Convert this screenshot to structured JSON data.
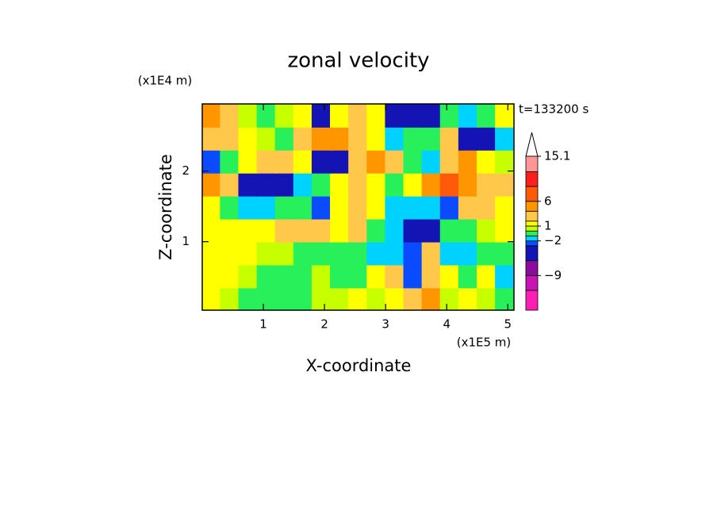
{
  "chart_data": {
    "type": "contourf",
    "title": "zonal velocity",
    "x_label": "X-coordinate",
    "y_label": "Z-coordinate",
    "x_unit": "(x1E5 m)",
    "y_unit": "(x1E4 m)",
    "annotation": "t=133200 s",
    "xlim": [
      0,
      5.1
    ],
    "ylim": [
      0.03,
      2.95
    ],
    "xticks": [
      1,
      2,
      3,
      4,
      5
    ],
    "yticks": [
      1,
      2
    ],
    "x": [
      0.15,
      0.45,
      0.75,
      1.05,
      1.35,
      1.65,
      1.95,
      2.25,
      2.55,
      2.85,
      3.15,
      3.45,
      3.75,
      4.05,
      4.35,
      4.65,
      4.95
    ],
    "y": [
      0.19,
      0.51,
      0.84,
      1.16,
      1.49,
      1.81,
      2.14,
      2.46,
      2.79
    ],
    "z": [
      [
        1.5,
        0.5,
        -0.5,
        -0.5,
        -0.5,
        -0.5,
        0.5,
        0.5,
        1.5,
        0.5,
        1.5,
        3,
        5,
        0.5,
        1.5,
        0.5,
        -0.5
      ],
      [
        1.5,
        1.5,
        0.5,
        -0.5,
        -0.5,
        -0.5,
        0.5,
        -0.5,
        -0.5,
        1.5,
        3,
        -2.5,
        3,
        1.5,
        -0.5,
        1.5,
        -1.5
      ],
      [
        1.5,
        1.5,
        1.5,
        0.5,
        0.5,
        -0.5,
        -0.5,
        -0.5,
        -0.5,
        -1.5,
        -1.5,
        -2.5,
        3,
        -1.5,
        -1.5,
        -0.5,
        -0.5
      ],
      [
        1.5,
        1.5,
        1.5,
        1.5,
        3,
        3,
        3,
        1.5,
        3,
        -0.5,
        -1.5,
        -5,
        -5,
        -0.5,
        -0.5,
        0.5,
        1.5
      ],
      [
        1.5,
        -0.5,
        -1.5,
        -1.5,
        -0.5,
        -0.5,
        -2.5,
        1.5,
        3,
        1.5,
        -1.5,
        -1.5,
        -1.5,
        -2.5,
        3,
        3,
        1.5
      ],
      [
        5,
        3,
        -5,
        -5,
        -5,
        -1.5,
        -0.5,
        1.5,
        3,
        1.5,
        -0.5,
        1.5,
        5,
        7.5,
        5,
        3,
        3
      ],
      [
        -2.5,
        -0.5,
        1.5,
        3,
        3,
        1.5,
        -5,
        -5,
        3,
        5,
        3,
        -0.5,
        -1.5,
        3,
        5,
        1.5,
        0.5
      ],
      [
        3,
        3,
        1.5,
        0.5,
        -0.5,
        3,
        5,
        5,
        3,
        1.5,
        -1.5,
        -0.5,
        -0.5,
        3,
        -5,
        -5,
        -1.5
      ],
      [
        5,
        3,
        0.5,
        -0.5,
        0.5,
        1.5,
        -5,
        1.5,
        3,
        1.5,
        -5,
        -6,
        -5,
        -0.5,
        -1.5,
        -0.5,
        1.5
      ]
    ],
    "levels": [
      -16,
      -12,
      -9,
      -6,
      -3,
      -2,
      -1,
      0,
      1,
      2,
      4,
      6,
      9,
      12,
      15.1
    ],
    "colors": [
      "#ff1eb4",
      "#c814b4",
      "#8c0a9e",
      "#1414b4",
      "#0a4bff",
      "#00d2ff",
      "#28f05a",
      "#c8ff00",
      "#ffff00",
      "#ffc84b",
      "#ff9600",
      "#ff5a0a",
      "#ff1e1e",
      "#ff9696",
      "#ffc8c8"
    ],
    "colorbar_ticks": [
      15.1,
      6,
      1,
      {
        "value": -2,
        "label": "−2"
      },
      {
        "value": -9,
        "label": "−9"
      }
    ]
  }
}
